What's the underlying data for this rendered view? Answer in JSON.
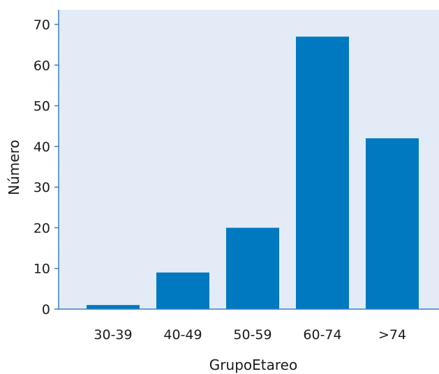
{
  "chart_data": {
    "type": "bar",
    "categories": [
      "30-39",
      "40-49",
      "50-59",
      "60-74",
      ">74"
    ],
    "values": [
      1,
      9,
      20,
      67,
      42
    ],
    "xlabel": "GrupoEtareo",
    "ylabel": "Número",
    "ylim": [
      0,
      70
    ],
    "yticks": [
      0,
      10,
      20,
      30,
      40,
      50,
      60,
      70
    ],
    "grid": false,
    "colors": {
      "plot_background": "#e3ebf6",
      "bar": "#0079c1",
      "axis": "#3a7fc4"
    }
  }
}
